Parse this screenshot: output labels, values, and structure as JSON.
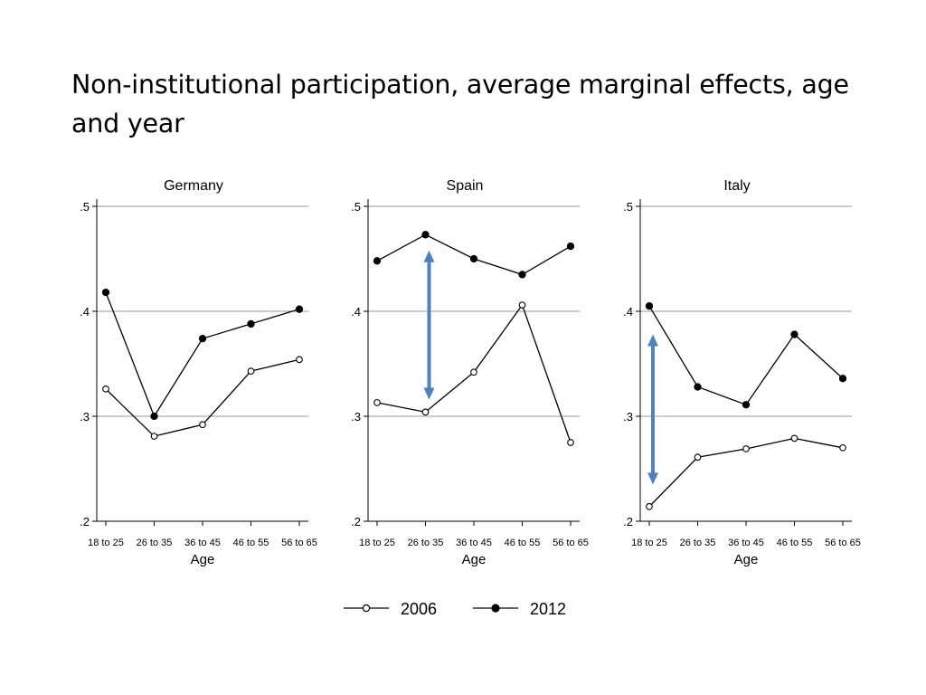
{
  "slide": {
    "title": "Non-institutional participation, average marginal effects, age and year"
  },
  "chart_data": [
    {
      "type": "line",
      "title": "Germany",
      "xlabel": "Age",
      "ylabel": "",
      "categories": [
        "18 to 25",
        "26 to 35",
        "36 to 45",
        "46 to 55",
        "56 to 65"
      ],
      "yticks": [
        ".2",
        ".3",
        ".4",
        ".5"
      ],
      "ylim": [
        0.2,
        0.5
      ],
      "grid": true,
      "series": [
        {
          "name": "2006",
          "values": [
            0.326,
            0.281,
            0.292,
            0.343,
            0.354
          ]
        },
        {
          "name": "2012",
          "values": [
            0.418,
            0.3,
            0.374,
            0.388,
            0.402
          ]
        }
      ]
    },
    {
      "type": "line",
      "title": "Spain",
      "xlabel": "Age",
      "ylabel": "",
      "categories": [
        "18 to 25",
        "26 to 35",
        "36 to 45",
        "46 to 55",
        "56 to 65"
      ],
      "yticks": [
        ".2",
        ".3",
        ".4",
        ".5"
      ],
      "ylim": [
        0.2,
        0.5
      ],
      "grid": true,
      "series": [
        {
          "name": "2006",
          "values": [
            0.313,
            0.304,
            0.342,
            0.406,
            0.275
          ]
        },
        {
          "name": "2012",
          "values": [
            0.448,
            0.473,
            0.45,
            0.435,
            0.462
          ]
        }
      ],
      "annotation": {
        "type": "double-arrow",
        "category": "26 to 35",
        "from": 0.316,
        "to": 0.458,
        "color": "#4f81bd"
      }
    },
    {
      "type": "line",
      "title": "Italy",
      "xlabel": "Age",
      "ylabel": "",
      "categories": [
        "18 to 25",
        "26 to 35",
        "36 to 45",
        "46 to 55",
        "56 to 65"
      ],
      "yticks": [
        ".2",
        ".3",
        ".4",
        ".5"
      ],
      "ylim": [
        0.2,
        0.5
      ],
      "grid": true,
      "series": [
        {
          "name": "2006",
          "values": [
            0.214,
            0.261,
            0.269,
            0.279,
            0.27
          ]
        },
        {
          "name": "2012",
          "values": [
            0.405,
            0.328,
            0.311,
            0.378,
            0.336
          ]
        }
      ],
      "annotation": {
        "type": "double-arrow",
        "category": "18 to 25",
        "from": 0.235,
        "to": 0.378,
        "color": "#4f81bd"
      }
    }
  ],
  "legend": {
    "placement": "bottom-center",
    "items": [
      {
        "label": "2006",
        "marker": "hollow-circle"
      },
      {
        "label": "2012",
        "marker": "filled-circle"
      }
    ]
  }
}
